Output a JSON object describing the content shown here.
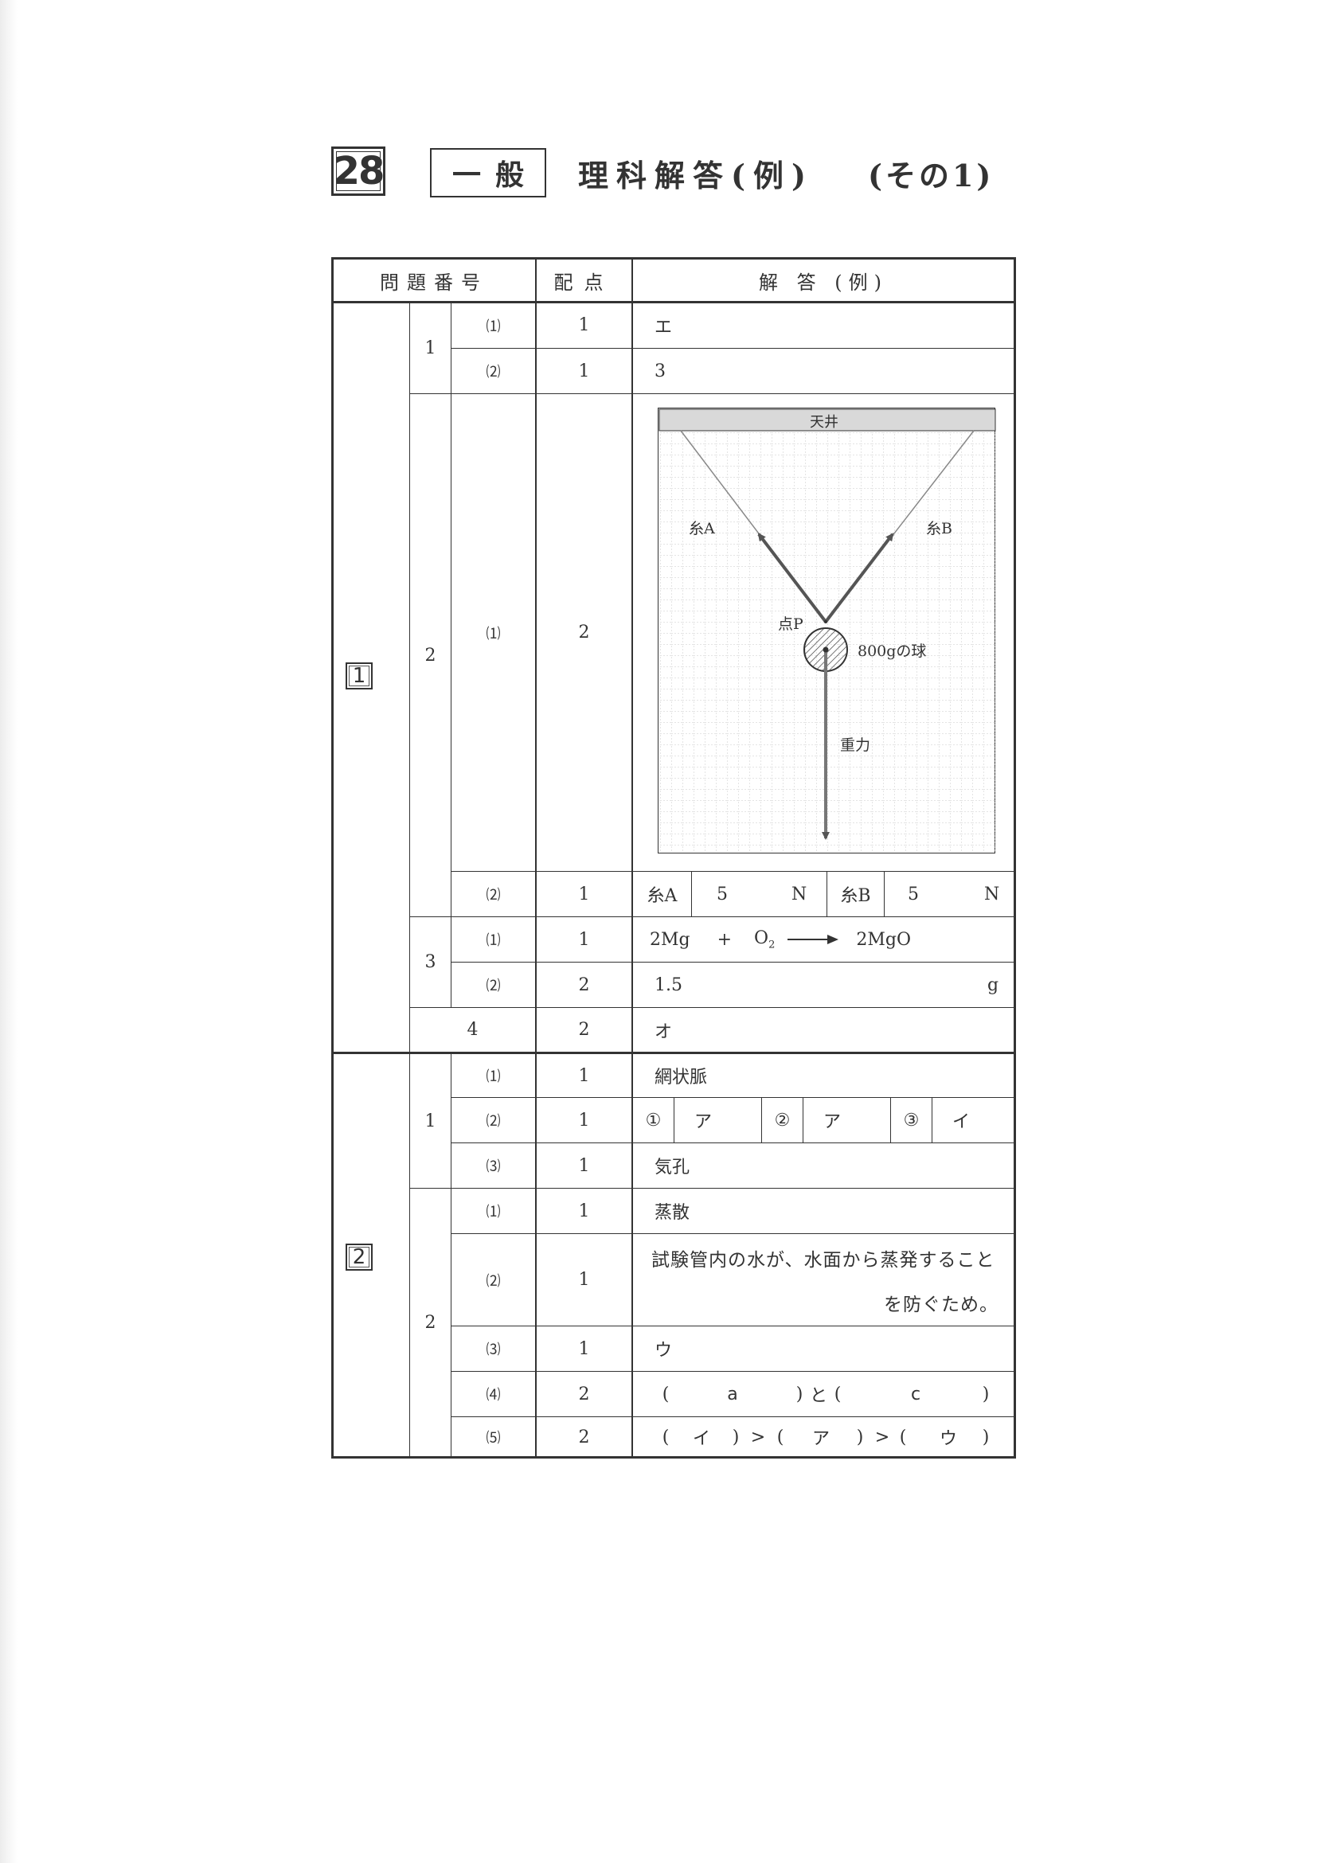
{
  "header": {
    "number": "28",
    "category": "一般",
    "title": "理科解答(例)",
    "part": "(その1)"
  },
  "table": {
    "headers": {
      "question_no": "問題番号",
      "score": "配点",
      "answer": "解 答 (例)"
    },
    "sections": [
      {
        "label": "1",
        "q1": {
          "label": "1",
          "p1": {
            "label": "⑴",
            "score": "1",
            "answer": "エ"
          },
          "p2": {
            "label": "⑵",
            "score": "1",
            "answer": "3"
          }
        },
        "q2": {
          "label": "2",
          "p1": {
            "label": "⑴",
            "score": "2",
            "diagram": {
              "ceiling": "天井",
              "thread_a": "糸A",
              "thread_b": "糸B",
              "point_p": "点P",
              "ball": "800gの球",
              "gravity": "重力"
            }
          },
          "p2": {
            "label": "⑵",
            "score": "1",
            "a_label": "糸A",
            "a_value": "5",
            "a_unit": "N",
            "b_label": "糸B",
            "b_value": "5",
            "b_unit": "N"
          }
        },
        "q3": {
          "label": "3",
          "p1": {
            "label": "⑴",
            "score": "1",
            "reactant1": "2Mg",
            "plus": "+",
            "reactant2_base": "O",
            "reactant2_sub": "2",
            "product": "2MgO"
          },
          "p2": {
            "label": "⑵",
            "score": "2",
            "value": "1.5",
            "unit": "g"
          }
        },
        "q4": {
          "label": "4",
          "score": "2",
          "answer": "オ"
        }
      },
      {
        "label": "2",
        "q1": {
          "label": "1",
          "p1": {
            "label": "⑴",
            "score": "1",
            "answer": "網状脈"
          },
          "p2": {
            "label": "⑵",
            "score": "1",
            "m1": "①",
            "a1": "ア",
            "m2": "②",
            "a2": "ア",
            "m3": "③",
            "a3": "イ"
          },
          "p3": {
            "label": "⑶",
            "score": "1",
            "answer": "気孔"
          }
        },
        "q2": {
          "label": "2",
          "p1": {
            "label": "⑴",
            "score": "1",
            "answer": "蒸散"
          },
          "p2": {
            "label": "⑵",
            "score": "1",
            "line1": "試験管内の水が、水面から蒸発すること",
            "line2": "を防ぐため。"
          },
          "p3": {
            "label": "⑶",
            "score": "1",
            "answer": "ウ"
          },
          "p4": {
            "label": "⑷",
            "score": "2",
            "open1": "(",
            "x": "a",
            "close1": ")",
            "and": "と",
            "open2": "(",
            "y": "c",
            "close2": ")"
          },
          "p5": {
            "label": "⑸",
            "score": "2",
            "open1": "(",
            "x": "イ",
            "close1": ")",
            "gt1": ">",
            "open2": "(",
            "y": "ア",
            "close2": ")",
            "gt2": ">",
            "open3": "(",
            "z": "ウ",
            "close3": ")"
          }
        }
      }
    ]
  },
  "colors": {
    "ink": "#333333",
    "arrow": "#555555",
    "grid": "#c8c8c8"
  }
}
